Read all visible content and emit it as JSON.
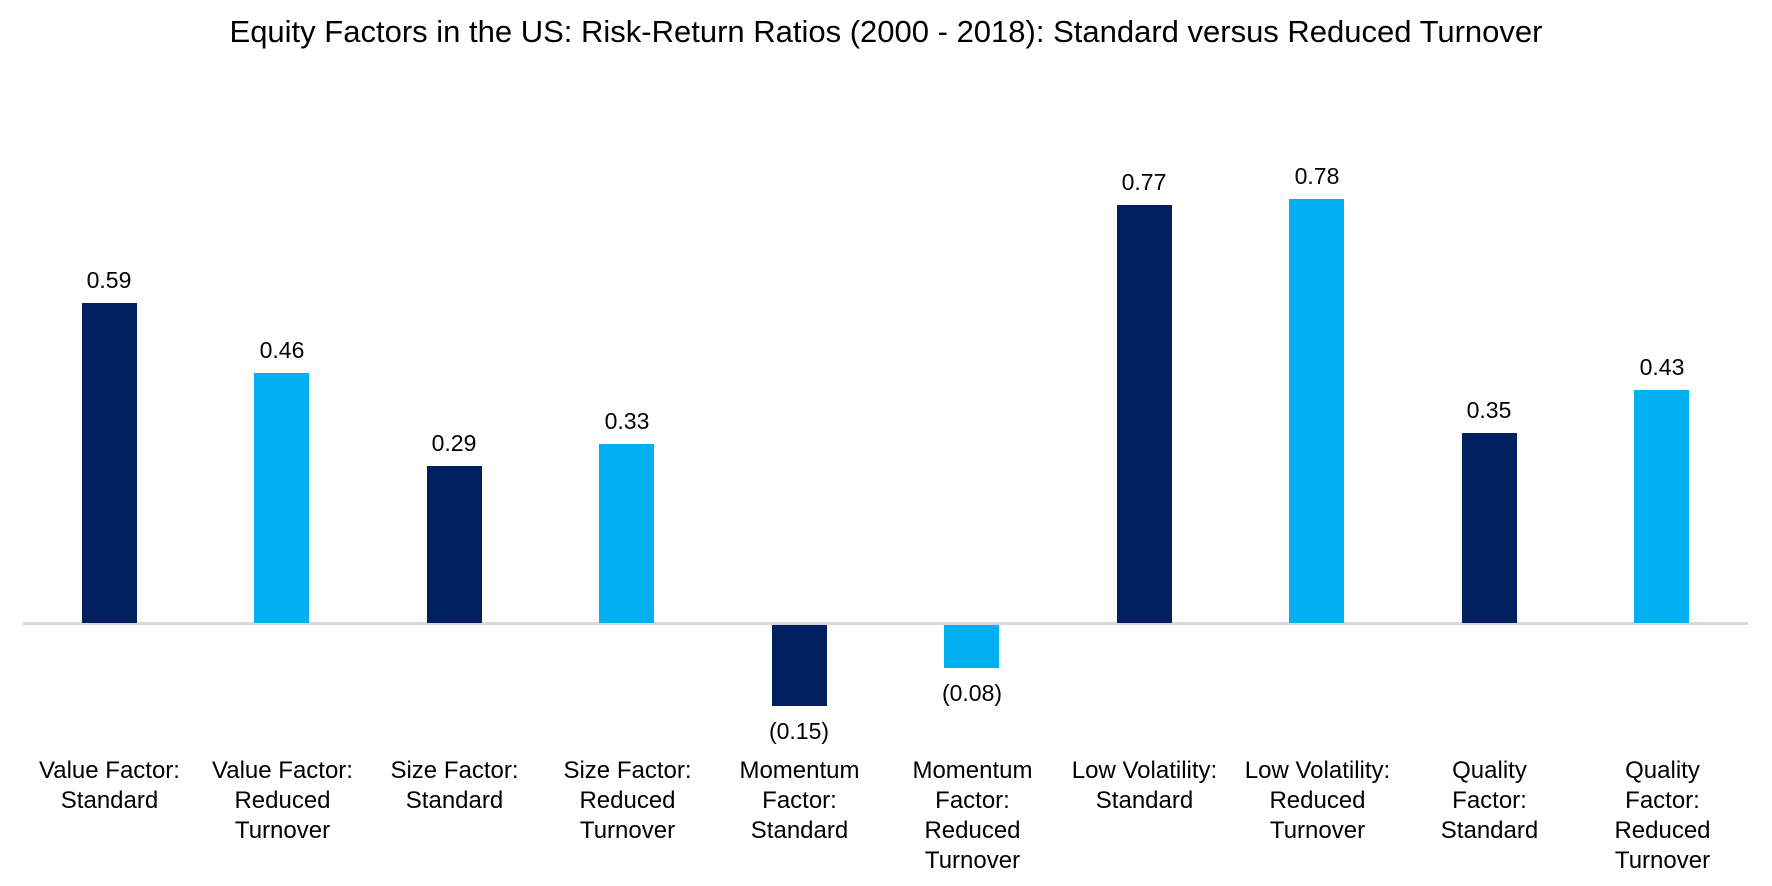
{
  "chart_data": {
    "type": "bar",
    "title": "Equity Factors in the US: Risk-Return Ratios (2000 - 2018): Standard versus Reduced Turnover",
    "xlabel": "",
    "ylabel": "",
    "grid": false,
    "legend": "none",
    "ylim": [
      -0.2,
      0.85
    ],
    "categories": [
      "Value Factor:\nStandard",
      "Value Factor:\nReduced\nTurnover",
      "Size Factor:\nStandard",
      "Size Factor:\nReduced\nTurnover",
      "Momentum\nFactor:\nStandard",
      "Momentum\nFactor:\nReduced\nTurnover",
      "Low Volatility:\nStandard",
      "Low Volatility:\nReduced\nTurnover",
      "Quality\nFactor:\nStandard",
      "Quality\nFactor:\nReduced\nTurnover"
    ],
    "values": [
      0.59,
      0.46,
      0.29,
      0.33,
      -0.15,
      -0.08,
      0.77,
      0.78,
      0.35,
      0.43
    ],
    "value_labels": [
      "0.59",
      "0.46",
      "0.29",
      "0.33",
      "(0.15)",
      "(0.08)",
      "0.77",
      "0.78",
      "0.35",
      "0.43"
    ],
    "variant": [
      "standard",
      "reduced",
      "standard",
      "reduced",
      "standard",
      "reduced",
      "standard",
      "reduced",
      "standard",
      "reduced"
    ],
    "palette": {
      "standard": "#002060",
      "reduced": "#00B0F0"
    },
    "axis_color": "#D9D9D9",
    "text_color": "#000000"
  }
}
